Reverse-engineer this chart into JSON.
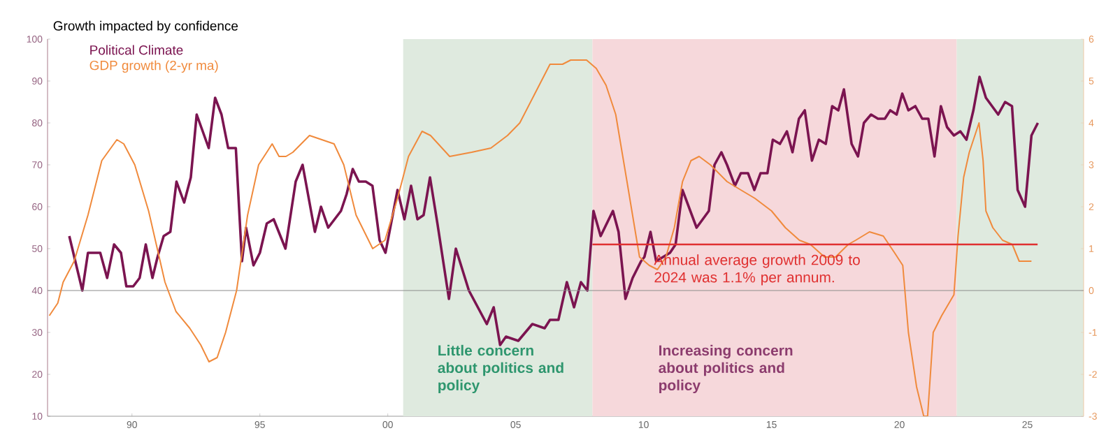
{
  "chart_data": {
    "type": "line",
    "title": "Growth impacted by confidence",
    "xlim": [
      1986.7,
      2027.2
    ],
    "xticks": [
      {
        "value": 1990,
        "label": "90"
      },
      {
        "value": 1995,
        "label": "95"
      },
      {
        "value": 2000,
        "label": "00"
      },
      {
        "value": 2005,
        "label": "05"
      },
      {
        "value": 2010,
        "label": "10"
      },
      {
        "value": 2015,
        "label": "15"
      },
      {
        "value": 2020,
        "label": "20"
      },
      {
        "value": 2025,
        "label": "25"
      }
    ],
    "ylim": [
      10,
      100
    ],
    "yticks": [
      10,
      20,
      30,
      40,
      50,
      60,
      70,
      80,
      90,
      100
    ],
    "y2lim": [
      -3,
      6
    ],
    "y2ticks": [
      -3,
      -2,
      -1,
      0,
      1,
      2,
      3,
      4,
      5,
      6
    ],
    "legend": "top left",
    "series": [
      {
        "name": "Political Climate",
        "color": "#7b1450",
        "x": [
          1987.55,
          1988.06,
          1988.28,
          1988.76,
          1989.03,
          1989.3,
          1989.57,
          1989.78,
          1990.05,
          1990.3,
          1990.54,
          1990.8,
          1991.0,
          1991.24,
          1991.5,
          1991.74,
          1992.04,
          1992.3,
          1992.53,
          1993.0,
          1993.25,
          1993.5,
          1993.76,
          1994.06,
          1994.3,
          1994.46,
          1994.75,
          1995.0,
          1995.27,
          1995.54,
          1996.0,
          1996.4,
          1996.67,
          1997.15,
          1997.39,
          1997.67,
          1998.17,
          1998.39,
          1998.63,
          1998.87,
          1999.14,
          1999.4,
          1999.68,
          1999.91,
          2000.38,
          2000.65,
          2000.91,
          2001.16,
          2001.4,
          2001.65,
          2001.94,
          2002.39,
          2002.66,
          2003.17,
          2003.87,
          2004.14,
          2004.39,
          2004.62,
          2005.1,
          2005.65,
          2006.13,
          2006.34,
          2006.67,
          2007.0,
          2007.28,
          2007.55,
          2007.8,
          2008.04,
          2008.32,
          2008.8,
          2009.02,
          2009.29,
          2009.57,
          2009.9,
          2010.03,
          2010.27,
          2010.49,
          2010.76,
          2011.03,
          2011.25,
          2011.52,
          2012.07,
          2012.55,
          2012.77,
          2013.04,
          2013.26,
          2013.57,
          2013.8,
          2014.08,
          2014.33,
          2014.57,
          2014.84,
          2015.05,
          2015.33,
          2015.6,
          2015.82,
          2016.07,
          2016.3,
          2016.58,
          2016.85,
          2017.12,
          2017.37,
          2017.61,
          2017.83,
          2018.13,
          2018.38,
          2018.61,
          2018.89,
          2019.16,
          2019.43,
          2019.64,
          2019.89,
          2020.11,
          2020.35,
          2020.62,
          2020.89,
          2021.13,
          2021.37,
          2021.62,
          2021.86,
          2022.13,
          2022.38,
          2022.62,
          2022.89,
          2023.13,
          2023.38,
          2023.86,
          2024.13,
          2024.4,
          2024.62,
          2024.91,
          2025.16,
          2025.41
        ],
        "values": [
          53,
          40,
          49,
          49,
          43,
          51,
          49,
          41,
          41,
          43,
          51,
          43,
          48,
          53,
          54,
          66,
          61,
          67,
          82,
          74,
          86,
          82,
          74,
          74,
          47,
          55,
          46,
          49,
          56,
          57,
          50,
          66,
          70,
          54,
          60,
          55,
          59,
          63,
          69,
          66,
          66,
          65,
          52,
          49,
          64,
          57,
          65,
          57,
          58,
          67,
          56,
          38,
          50,
          40,
          32,
          36,
          27,
          29,
          28,
          32,
          31,
          33,
          33,
          42,
          36,
          42,
          40,
          59,
          53,
          59,
          54,
          38,
          43,
          47,
          48,
          54,
          47,
          48,
          49,
          51,
          64,
          55,
          59,
          70,
          73,
          70,
          65,
          68,
          68,
          64,
          68,
          68,
          76,
          75,
          78,
          73,
          81,
          83,
          71,
          76,
          75,
          84,
          83,
          88,
          75,
          72,
          80,
          82,
          81,
          81,
          83,
          82,
          87,
          83,
          84,
          81,
          81,
          72,
          84,
          79,
          77,
          78,
          76,
          83,
          91,
          86,
          82,
          85,
          84,
          64,
          60,
          77,
          80
        ]
      },
      {
        "name": "GDP growth (2-yr ma)",
        "color": "#f08a3c",
        "axis": "y2",
        "x": [
          1986.77,
          1987.1,
          1987.31,
          1987.74,
          1988.28,
          1988.82,
          1989.41,
          1989.68,
          1990.11,
          1990.65,
          1991.29,
          1991.72,
          1992.26,
          1992.69,
          1993.01,
          1993.33,
          1993.66,
          1994.09,
          1994.52,
          1994.95,
          1995.27,
          1995.48,
          1995.75,
          1996.02,
          1996.29,
          1996.94,
          1997.42,
          1997.9,
          1998.28,
          1998.76,
          1999.41,
          1999.89,
          2000.38,
          2000.81,
          2001.34,
          2001.67,
          2002.42,
          2003.28,
          2004.03,
          2004.68,
          2005.16,
          2005.75,
          2006.34,
          2006.83,
          2007.15,
          2007.39,
          2007.77,
          2008.15,
          2008.53,
          2008.91,
          2009.35,
          2009.84,
          2010.22,
          2010.54,
          2010.87,
          2011.2,
          2011.52,
          2011.85,
          2012.17,
          2012.61,
          2013.26,
          2013.8,
          2014.35,
          2015.0,
          2015.54,
          2016.09,
          2016.52,
          2017.07,
          2017.5,
          2018.0,
          2018.29,
          2018.83,
          2019.37,
          2019.81,
          2020.13,
          2020.35,
          2020.67,
          2020.95,
          2021.1,
          2021.32,
          2021.65,
          2022.13,
          2022.29,
          2022.51,
          2022.73,
          2023.11,
          2023.27,
          2023.38,
          2023.65,
          2024.03,
          2024.41,
          2024.68,
          2024.89,
          2025.16
        ],
        "values": [
          -0.6,
          -0.3,
          0.2,
          0.7,
          1.8,
          3.1,
          3.6,
          3.5,
          3.0,
          1.9,
          0.2,
          -0.5,
          -0.9,
          -1.3,
          -1.7,
          -1.6,
          -1.0,
          0.0,
          1.8,
          3.0,
          3.3,
          3.5,
          3.2,
          3.2,
          3.3,
          3.7,
          3.6,
          3.5,
          3.0,
          1.8,
          1.0,
          1.2,
          2.2,
          3.2,
          3.8,
          3.7,
          3.2,
          3.3,
          3.4,
          3.7,
          4.0,
          4.7,
          5.4,
          5.4,
          5.5,
          5.5,
          5.5,
          5.3,
          4.9,
          4.2,
          2.6,
          0.8,
          0.6,
          0.5,
          0.8,
          1.5,
          2.6,
          3.1,
          3.2,
          3.0,
          2.6,
          2.4,
          2.2,
          1.9,
          1.5,
          1.2,
          1.1,
          0.8,
          0.8,
          1.1,
          1.2,
          1.4,
          1.3,
          0.9,
          0.6,
          -1.0,
          -2.3,
          -3.0,
          -3.0,
          -1.0,
          -0.6,
          -0.1,
          1.3,
          2.7,
          3.3,
          4.0,
          3.1,
          1.9,
          1.5,
          1.2,
          1.1,
          0.7,
          0.7,
          0.7
        ]
      },
      {
        "color": "#e03030",
        "axis": "y2",
        "x": [
          2008.0,
          2025.4
        ],
        "values": [
          1.1,
          1.1
        ]
      }
    ],
    "ref_lines": [
      {
        "axis": "y2",
        "value": 0,
        "color": "#8c8c8c"
      }
    ],
    "bands": [
      {
        "axis": "x",
        "from": 2000.6,
        "to": 2008.0,
        "color": "#dfeadf",
        "label": "Little concern about politics and policy"
      },
      {
        "axis": "x",
        "from": 2008.0,
        "to": 2022.24,
        "color": "#f6d8db",
        "label": "Increasing concern about politics and policy"
      },
      {
        "axis": "x",
        "from": 2022.24,
        "to": 2027.2,
        "color": "#dfeadf"
      }
    ],
    "annotations": [
      "Annual average growth 2009 to 2024 was 1.1% per annum."
    ]
  }
}
